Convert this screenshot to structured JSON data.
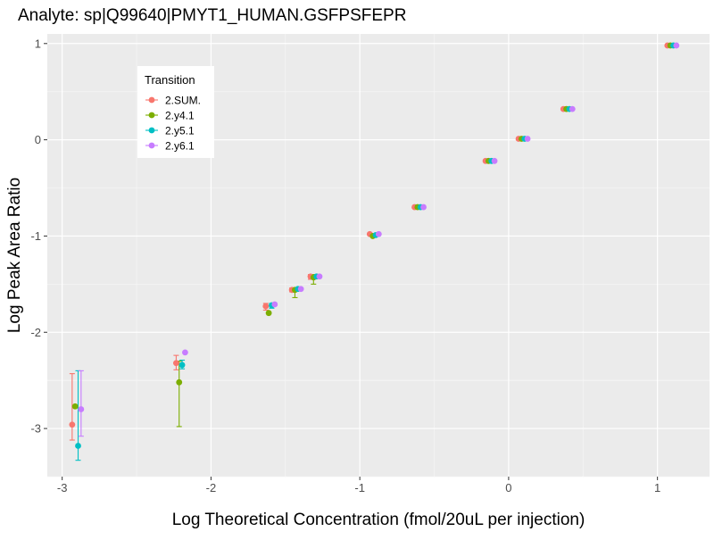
{
  "chart_data": {
    "type": "scatter",
    "title": "Analyte: sp|Q99640|PMYT1_HUMAN.GSFPSFEPR",
    "xlabel": "Log Theoretical Concentration (fmol/20uL per injection)",
    "ylabel": "Log Peak Area Ratio",
    "xlim": [
      -3.1,
      1.35
    ],
    "ylim": [
      -3.5,
      1.1
    ],
    "x_ticks": [
      -3,
      -2,
      -1,
      0,
      1
    ],
    "y_ticks": [
      -3,
      -2,
      -1,
      0,
      1
    ],
    "x_tick_labels": [
      "-3",
      "-2",
      "-1",
      "0",
      "1"
    ],
    "y_tick_labels": [
      "-3",
      "-2",
      "-1",
      "0",
      "1"
    ],
    "grid": true,
    "background": "#EBEBEB",
    "legend": {
      "title": "Transition",
      "position": "top-left"
    },
    "x_concentrations": [
      -2.903,
      -2.204,
      -1.602,
      -1.426,
      -1.301,
      -0.903,
      -0.602,
      -0.125,
      0.097,
      0.398,
      1.097
    ],
    "series": [
      {
        "name": "2.SUM.",
        "color": "#F8766D",
        "points": [
          {
            "x": -2.903,
            "y": -2.96,
            "lo": -3.12,
            "hi": -2.43
          },
          {
            "x": -2.204,
            "y": -2.32,
            "lo": -2.39,
            "hi": -2.24
          },
          {
            "x": -1.602,
            "y": -1.73,
            "lo": -1.77,
            "hi": -1.7
          },
          {
            "x": -1.426,
            "y": -1.56,
            "lo": -1.58,
            "hi": -1.54
          },
          {
            "x": -1.301,
            "y": -1.42,
            "lo": -1.45,
            "hi": -1.4
          },
          {
            "x": -0.903,
            "y": -0.98,
            "lo": -0.99,
            "hi": -0.97
          },
          {
            "x": -0.602,
            "y": -0.7,
            "lo": -0.7,
            "hi": -0.7
          },
          {
            "x": -0.125,
            "y": -0.22,
            "lo": -0.22,
            "hi": -0.22
          },
          {
            "x": 0.097,
            "y": 0.01,
            "lo": 0.01,
            "hi": 0.01
          },
          {
            "x": 0.398,
            "y": 0.32,
            "lo": 0.32,
            "hi": 0.32
          },
          {
            "x": 1.097,
            "y": 0.98,
            "lo": 0.98,
            "hi": 0.98
          }
        ]
      },
      {
        "name": "2.y4.1",
        "color": "#7CAE00",
        "points": [
          {
            "x": -2.903,
            "y": -2.77,
            "lo": -2.78,
            "hi": -2.77
          },
          {
            "x": -2.204,
            "y": -2.52,
            "lo": -2.98,
            "hi": -2.3
          },
          {
            "x": -1.602,
            "y": -1.8,
            "lo": -1.8,
            "hi": -1.8
          },
          {
            "x": -1.426,
            "y": -1.56,
            "lo": -1.64,
            "hi": -1.54
          },
          {
            "x": -1.301,
            "y": -1.43,
            "lo": -1.5,
            "hi": -1.4
          },
          {
            "x": -0.903,
            "y": -1.0,
            "lo": -1.0,
            "hi": -1.0
          },
          {
            "x": -0.602,
            "y": -0.7,
            "lo": -0.7,
            "hi": -0.7
          },
          {
            "x": -0.125,
            "y": -0.22,
            "lo": -0.22,
            "hi": -0.22
          },
          {
            "x": 0.097,
            "y": 0.01,
            "lo": 0.01,
            "hi": 0.01
          },
          {
            "x": 0.398,
            "y": 0.32,
            "lo": 0.32,
            "hi": 0.32
          },
          {
            "x": 1.097,
            "y": 0.98,
            "lo": 0.98,
            "hi": 0.98
          }
        ]
      },
      {
        "name": "2.y5.1",
        "color": "#00BFC4",
        "points": [
          {
            "x": -2.903,
            "y": -3.18,
            "lo": -3.33,
            "hi": -2.4
          },
          {
            "x": -2.204,
            "y": -2.34,
            "lo": -2.38,
            "hi": -2.29
          },
          {
            "x": -1.602,
            "y": -1.72,
            "lo": -1.75,
            "hi": -1.7
          },
          {
            "x": -1.426,
            "y": -1.55,
            "lo": -1.56,
            "hi": -1.54
          },
          {
            "x": -1.301,
            "y": -1.42,
            "lo": -1.43,
            "hi": -1.41
          },
          {
            "x": -0.903,
            "y": -0.99,
            "lo": -0.99,
            "hi": -0.99
          },
          {
            "x": -0.602,
            "y": -0.7,
            "lo": -0.7,
            "hi": -0.7
          },
          {
            "x": -0.125,
            "y": -0.22,
            "lo": -0.22,
            "hi": -0.22
          },
          {
            "x": 0.097,
            "y": 0.01,
            "lo": 0.01,
            "hi": 0.01
          },
          {
            "x": 0.398,
            "y": 0.32,
            "lo": 0.32,
            "hi": 0.32
          },
          {
            "x": 1.097,
            "y": 0.98,
            "lo": 0.98,
            "hi": 0.98
          }
        ]
      },
      {
        "name": "2.y6.1",
        "color": "#C77CFF",
        "points": [
          {
            "x": -2.903,
            "y": -2.8,
            "lo": -3.08,
            "hi": -2.4
          },
          {
            "x": -2.204,
            "y": -2.21,
            "lo": -2.21,
            "hi": -2.21
          },
          {
            "x": -1.602,
            "y": -1.71,
            "lo": -1.72,
            "hi": -1.7
          },
          {
            "x": -1.426,
            "y": -1.55,
            "lo": -1.56,
            "hi": -1.54
          },
          {
            "x": -1.301,
            "y": -1.42,
            "lo": -1.43,
            "hi": -1.41
          },
          {
            "x": -0.903,
            "y": -0.98,
            "lo": -0.98,
            "hi": -0.98
          },
          {
            "x": -0.602,
            "y": -0.7,
            "lo": -0.7,
            "hi": -0.7
          },
          {
            "x": -0.125,
            "y": -0.22,
            "lo": -0.22,
            "hi": -0.22
          },
          {
            "x": 0.097,
            "y": 0.01,
            "lo": 0.01,
            "hi": 0.01
          },
          {
            "x": 0.398,
            "y": 0.32,
            "lo": 0.32,
            "hi": 0.32
          },
          {
            "x": 1.097,
            "y": 0.98,
            "lo": 0.98,
            "hi": 0.98
          }
        ]
      }
    ]
  }
}
